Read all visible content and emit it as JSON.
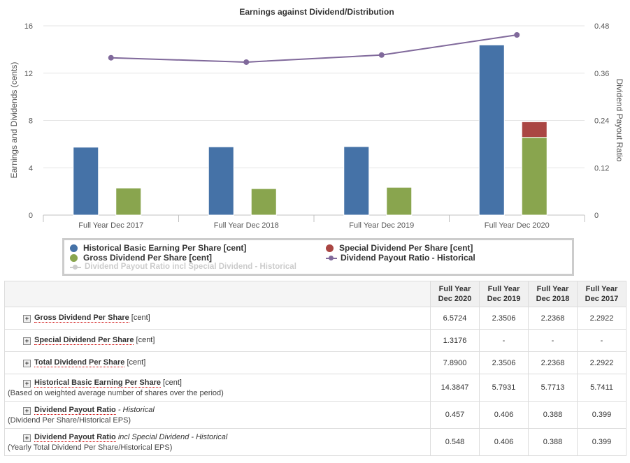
{
  "chart_data": {
    "type": "bar",
    "title": "Earnings against Dividend/Distribution",
    "categories": [
      "Full Year Dec 2017",
      "Full Year Dec 2018",
      "Full Year Dec 2019",
      "Full Year Dec 2020"
    ],
    "ylabel": "Earnings and Dividends (cents)",
    "ylabel_right": "Dividend Payout Ratio",
    "ylim": [
      0,
      16
    ],
    "yticks": [
      "0",
      "4",
      "8",
      "12",
      "16"
    ],
    "ylim_right": [
      0,
      0.48
    ],
    "yticks_right": [
      "0",
      "0.12",
      "0.24",
      "0.36",
      "0.48"
    ],
    "grid": true,
    "legend_position": "bottom",
    "series": [
      {
        "name": "Historical Basic Earning Per Share [cent]",
        "kind": "bar",
        "color": "#4572a7",
        "values": [
          5.7411,
          5.7713,
          5.7931,
          14.3847
        ]
      },
      {
        "name": "Gross Dividend Per Share [cent]",
        "kind": "bar-stack",
        "color": "#89a54e",
        "values": [
          2.2922,
          2.2368,
          2.3506,
          6.5724
        ]
      },
      {
        "name": "Special Dividend Per Share [cent]",
        "kind": "bar-stack",
        "color": "#aa4643",
        "values": [
          0,
          0,
          0,
          1.3176
        ]
      },
      {
        "name": "Dividend Payout Ratio - Historical",
        "kind": "line",
        "axis": "right",
        "color": "#80699b",
        "values": [
          0.399,
          0.388,
          0.406,
          0.457
        ]
      },
      {
        "name": "Dividend Payout Ratio incl Special Dividend - Historical",
        "kind": "line",
        "axis": "right",
        "color": "#cccccc",
        "hidden": true,
        "values": [
          0.399,
          0.388,
          0.406,
          0.548
        ]
      }
    ]
  },
  "table": {
    "headers": [
      {
        "line1": "Full Year",
        "line2": "Dec 2020"
      },
      {
        "line1": "Full Year",
        "line2": "Dec 2019"
      },
      {
        "line1": "Full Year",
        "line2": "Dec 2018"
      },
      {
        "line1": "Full Year",
        "line2": "Dec 2017"
      }
    ],
    "rows": [
      {
        "name": "Gross Dividend Per Share",
        "qualifier": "",
        "unit": "[cent]",
        "note": "",
        "values": [
          "6.5724",
          "2.3506",
          "2.2368",
          "2.2922"
        ]
      },
      {
        "name": "Special Dividend Per Share",
        "qualifier": "",
        "unit": "[cent]",
        "note": "",
        "values": [
          "1.3176",
          "-",
          "-",
          "-"
        ]
      },
      {
        "name": "Total Dividend Per Share",
        "qualifier": "",
        "unit": "[cent]",
        "note": "",
        "values": [
          "7.8900",
          "2.3506",
          "2.2368",
          "2.2922"
        ]
      },
      {
        "name": "Historical Basic Earning Per Share",
        "qualifier": "",
        "unit": "[cent]",
        "note": "(Based on weighted average number of shares over the period)",
        "values": [
          "14.3847",
          "5.7931",
          "5.7713",
          "5.7411"
        ]
      },
      {
        "name": "Dividend Payout Ratio",
        "qualifier": "- Historical",
        "unit": "",
        "note": "(Dividend Per Share/Historical EPS)",
        "values": [
          "0.457",
          "0.406",
          "0.388",
          "0.399"
        ]
      },
      {
        "name": "Dividend Payout Ratio",
        "qualifier": "incl Special Dividend - Historical",
        "unit": "",
        "note": "(Yearly Total Dividend Per Share/Historical EPS)",
        "values": [
          "0.548",
          "0.406",
          "0.388",
          "0.399"
        ]
      }
    ]
  }
}
